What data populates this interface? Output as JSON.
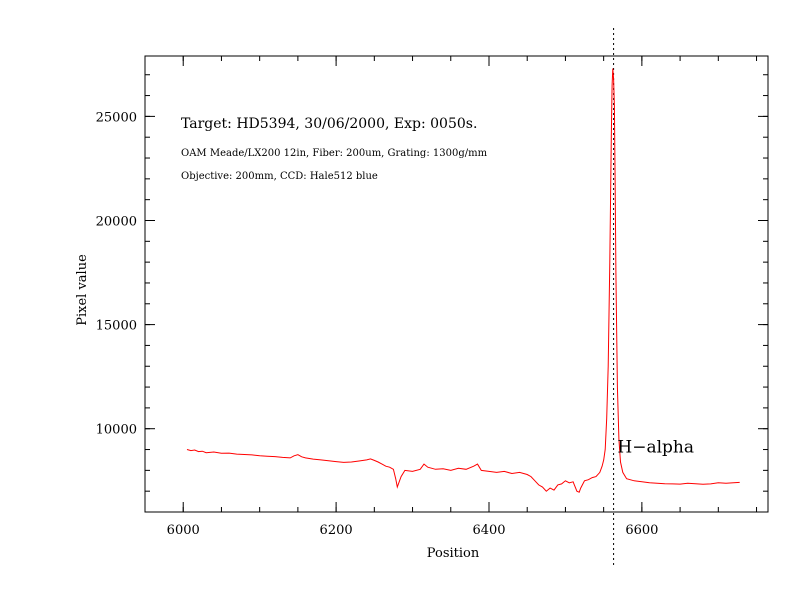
{
  "chart_data": {
    "type": "line",
    "title": "Target: HD5394, 30/06/2000, Exp: 0050s.",
    "subtitles": [
      "OAM Meade/LX200 12in, Fiber: 200um, Grating: 1300g/mm",
      "Objective: 200mm, CCD: Hale512 blue"
    ],
    "xlabel": "Position",
    "ylabel": "Pixel value",
    "xlim": [
      5950,
      6765
    ],
    "ylim": [
      6000,
      27900
    ],
    "xticks": [
      6000,
      6200,
      6400,
      6600
    ],
    "yticks": [
      10000,
      15000,
      20000,
      25000
    ],
    "xminor_step": 50,
    "yminor_step": 1000,
    "line_color": "#ff0000",
    "annotation": {
      "text": "H−alpha",
      "x": 6568,
      "y": 8850
    },
    "marker_x": 6563,
    "series": [
      {
        "x": [
          6005,
          6010,
          6015,
          6020,
          6025,
          6030,
          6040,
          6050,
          6060,
          6070,
          6080,
          6090,
          6100,
          6110,
          6120,
          6130,
          6140,
          6145,
          6150,
          6155,
          6160,
          6170,
          6180,
          6190,
          6200,
          6210,
          6220,
          6230,
          6240,
          6245,
          6250,
          6255,
          6260,
          6265,
          6270,
          6275,
          6278,
          6280,
          6285,
          6290,
          6300,
          6310,
          6315,
          6320,
          6330,
          6340,
          6350,
          6360,
          6370,
          6380,
          6385,
          6390,
          6400,
          6410,
          6420,
          6430,
          6440,
          6450,
          6455,
          6460,
          6465,
          6470,
          6475,
          6480,
          6485,
          6490,
          6495,
          6500,
          6505,
          6510,
          6515,
          6518,
          6520,
          6525,
          6530,
          6535,
          6540,
          6545,
          6548,
          6550,
          6552,
          6554,
          6556,
          6558,
          6560,
          6561,
          6562,
          6563,
          6564,
          6565,
          6566,
          6568,
          6570,
          6572,
          6575,
          6580,
          6590,
          6600,
          6610,
          6620,
          6630,
          6640,
          6650,
          6660,
          6670,
          6680,
          6690,
          6700,
          6710,
          6720,
          6728
        ],
        "values": [
          9000,
          8950,
          8980,
          8900,
          8920,
          8850,
          8880,
          8820,
          8830,
          8780,
          8760,
          8740,
          8700,
          8680,
          8660,
          8620,
          8600,
          8700,
          8750,
          8650,
          8600,
          8540,
          8500,
          8460,
          8420,
          8380,
          8400,
          8450,
          8500,
          8550,
          8480,
          8400,
          8300,
          8200,
          8150,
          8050,
          7600,
          7200,
          7700,
          8000,
          7950,
          8050,
          8300,
          8150,
          8050,
          8080,
          8000,
          8100,
          8050,
          8200,
          8300,
          8000,
          7950,
          7900,
          7950,
          7850,
          7900,
          7800,
          7700,
          7500,
          7300,
          7200,
          7000,
          7150,
          7050,
          7300,
          7350,
          7500,
          7400,
          7450,
          7000,
          6950,
          7150,
          7500,
          7550,
          7650,
          7700,
          7900,
          8200,
          8500,
          9000,
          10500,
          13000,
          18000,
          24000,
          26500,
          27300,
          26800,
          25500,
          22000,
          17500,
          12000,
          9500,
          8400,
          7900,
          7600,
          7500,
          7450,
          7400,
          7380,
          7360,
          7350,
          7340,
          7380,
          7360,
          7330,
          7350,
          7400,
          7380,
          7400,
          7420
        ]
      }
    ]
  }
}
